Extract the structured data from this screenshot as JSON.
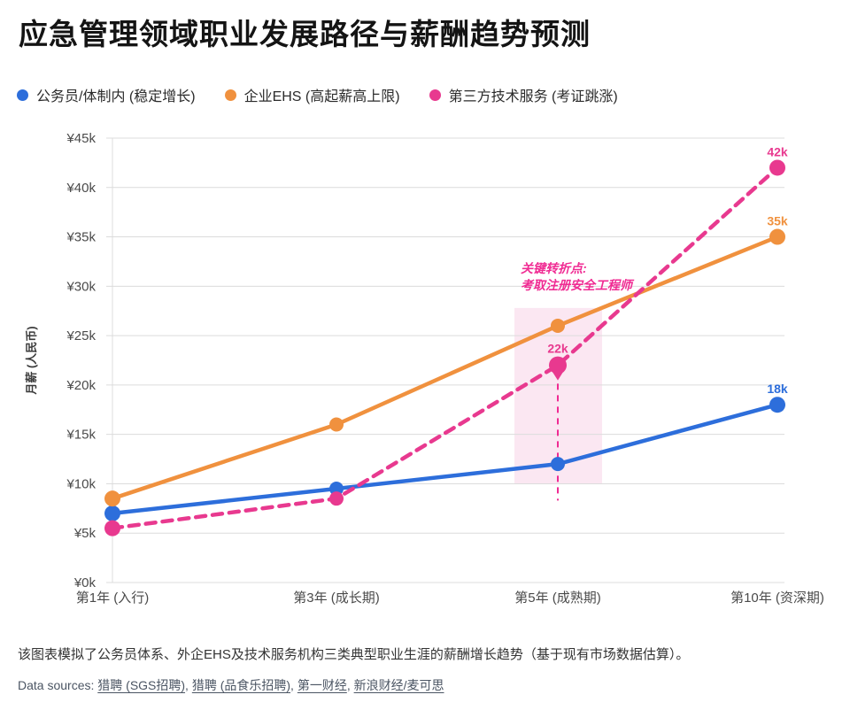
{
  "title": "应急管理领域职业发展路径与薪酬趋势预测",
  "legend": {
    "items": [
      {
        "label": "公务员/体制内 (稳定增长)",
        "color": "#2D6EDB"
      },
      {
        "label": "企业EHS (高起薪高上限)",
        "color": "#F0913E"
      },
      {
        "label": "第三方技术服务 (考证跳涨)",
        "color": "#E8398F"
      }
    ]
  },
  "chart_data": {
    "type": "line",
    "title": "应急管理领域职业发展路径与薪酬趋势预测",
    "categories": [
      "第1年 (入行)",
      "第3年 (成长期)",
      "第5年 (成熟期)",
      "第10年 (资深期)"
    ],
    "series": [
      {
        "name": "公务员/体制内 (稳定增长)",
        "color": "#2D6EDB",
        "style": "solid",
        "values": [
          7,
          9.5,
          12,
          18
        ],
        "point_labels": [
          "",
          "",
          "",
          "18k"
        ]
      },
      {
        "name": "企业EHS (高起薪高上限)",
        "color": "#F0913E",
        "style": "solid",
        "values": [
          8.5,
          16,
          26,
          35
        ],
        "point_labels": [
          "",
          "",
          "",
          "35k"
        ]
      },
      {
        "name": "第三方技术服务 (考证跳涨)",
        "color": "#E8398F",
        "style": "dashed",
        "values": [
          5.5,
          8.5,
          22,
          42
        ],
        "point_labels": [
          "",
          "",
          "22k",
          "42k"
        ]
      }
    ],
    "xlabel": "",
    "ylabel": "月薪 (人民币)",
    "ylim": [
      0,
      45
    ],
    "y_tick_values": [
      45,
      40,
      35,
      30,
      25,
      20,
      15,
      10,
      5,
      0
    ],
    "y_ticks": [
      "¥45k",
      "¥40k",
      "¥35k",
      "¥30k",
      "¥25k",
      "¥20k",
      "¥15k",
      "¥10k",
      "¥5k",
      "¥0k"
    ],
    "grid": true,
    "legend_position": "top-left",
    "annotation": {
      "line1": "关键转折点:",
      "line2": "考取注册安全工程师",
      "color": "#F02B93",
      "x_index": 2,
      "pin_series_index": 2,
      "highlight_color": "#FBE7F2",
      "highlight_y_range": [
        10,
        27.8
      ],
      "dropline_y_range": [
        8.3,
        21.3
      ]
    }
  },
  "footer": {
    "note": "该图表模拟了公务员体系、外企EHS及技术服务机构三类典型职业生涯的薪酬增长趋势（基于现有市场数据估算）。",
    "sources_prefix": "Data sources: ",
    "sources_separator": ", ",
    "sources": [
      "猎聘 (SGS招聘)",
      "猎聘 (品食乐招聘)",
      "第一财经",
      "新浪财经/麦可思"
    ]
  }
}
